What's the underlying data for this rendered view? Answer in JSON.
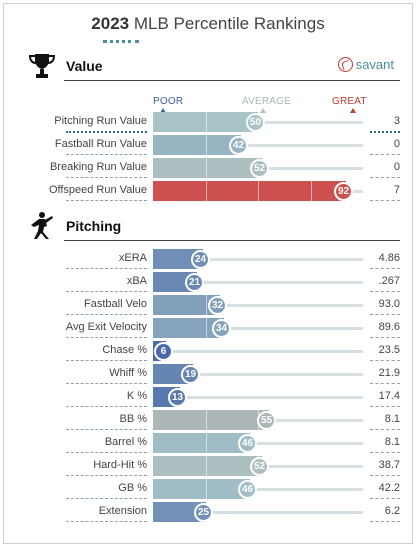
{
  "header": {
    "year": "2023",
    "title": "MLB Percentile Rankings"
  },
  "colors": {
    "poor": "#3b5ea6",
    "average": "#a9c4c7",
    "great": "#d33b38",
    "accent": "#4a8d96"
  },
  "value_section": {
    "title": "Value",
    "icon": "trophy-icon",
    "brand": "savant",
    "brand_icon": "baseball-icon",
    "scale": {
      "poor": "POOR",
      "average": "AVERAGE",
      "great": "GREAT"
    },
    "rows": [
      {
        "label": "Pitching Run Value",
        "percentile": 50,
        "value": "3"
      },
      {
        "label": "Fastball Run Value",
        "percentile": 42,
        "value": "0"
      },
      {
        "label": "Breaking Run Value",
        "percentile": 52,
        "value": "0"
      },
      {
        "label": "Offspeed Run Value",
        "percentile": 92,
        "value": "7"
      }
    ]
  },
  "pitching_section": {
    "title": "Pitching",
    "icon": "pitcher-icon",
    "rows": [
      {
        "label": "xERA",
        "percentile": 24,
        "value": "4.86"
      },
      {
        "label": "xBA",
        "percentile": 21,
        "value": ".267"
      },
      {
        "label": "Fastball Velo",
        "percentile": 32,
        "value": "93.0"
      },
      {
        "label": "Avg Exit Velocity",
        "percentile": 34,
        "value": "89.6"
      },
      {
        "label": "Chase %",
        "percentile": 6,
        "value": "23.5"
      },
      {
        "label": "Whiff %",
        "percentile": 19,
        "value": "21.9"
      },
      {
        "label": "K %",
        "percentile": 13,
        "value": "17.4"
      },
      {
        "label": "BB %",
        "percentile": 55,
        "value": "8.1"
      },
      {
        "label": "Barrel %",
        "percentile": 46,
        "value": "8.1"
      },
      {
        "label": "Hard-Hit %",
        "percentile": 52,
        "value": "38.7"
      },
      {
        "label": "GB %",
        "percentile": 46,
        "value": "42.2"
      },
      {
        "label": "Extension",
        "percentile": 25,
        "value": "6.2"
      }
    ]
  }
}
